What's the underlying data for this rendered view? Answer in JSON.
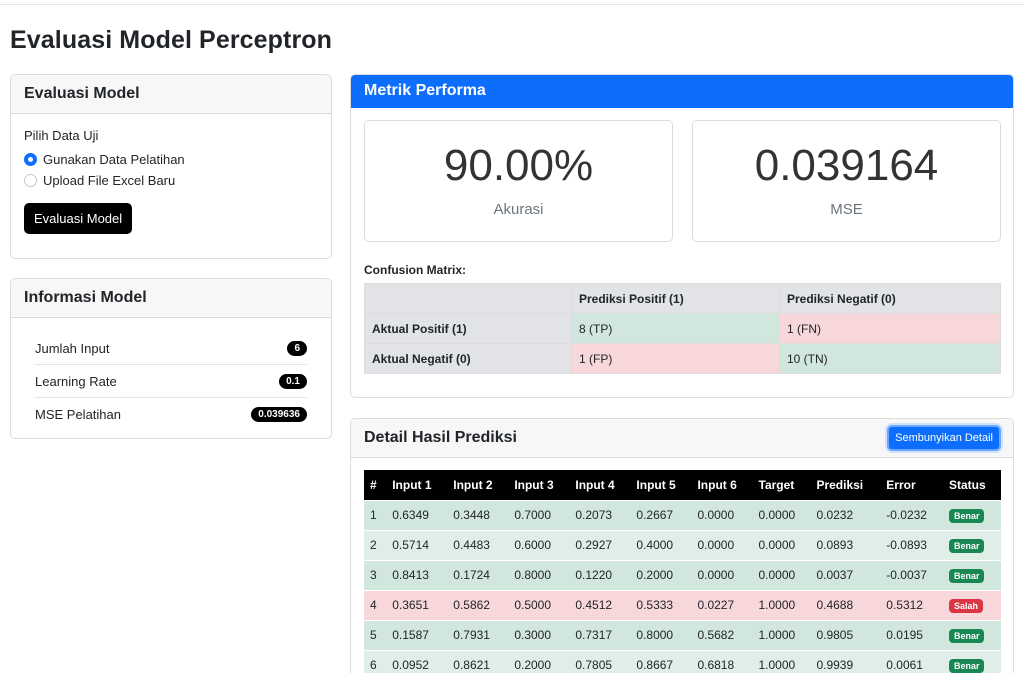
{
  "page": {
    "title": "Evaluasi Model Perceptron"
  },
  "evaluasi": {
    "header": "Evaluasi Model",
    "pilih_label": "Pilih Data Uji",
    "options": [
      {
        "label": "Gunakan Data Pelatihan",
        "checked": true
      },
      {
        "label": "Upload File Excel Baru",
        "checked": false
      }
    ],
    "button": "Evaluasi Model"
  },
  "info": {
    "header": "Informasi Model",
    "rows": [
      {
        "label": "Jumlah Input",
        "value": "6"
      },
      {
        "label": "Learning Rate",
        "value": "0.1"
      },
      {
        "label": "MSE Pelatihan",
        "value": "0.039636"
      }
    ]
  },
  "metrik": {
    "header": "Metrik Performa",
    "accuracy": {
      "value": "90.00%",
      "label": "Akurasi"
    },
    "mse": {
      "value": "0.039164",
      "label": "MSE"
    },
    "confusion": {
      "label": "Confusion Matrix:",
      "col_pos": "Prediksi Positif (1)",
      "col_neg": "Prediksi Negatif (0)",
      "row_pos": "Aktual Positif (1)",
      "row_neg": "Aktual Negatif (0)",
      "tp": "8 (TP)",
      "fn": "1 (FN)",
      "fp": "1 (FP)",
      "tn": "10 (TN)"
    }
  },
  "detail": {
    "header": "Detail Hasil Prediksi",
    "button": "Sembunyikan Detail",
    "columns": [
      "#",
      "Input 1",
      "Input 2",
      "Input 3",
      "Input 4",
      "Input 5",
      "Input 6",
      "Target",
      "Prediksi",
      "Error",
      "Status"
    ],
    "rows": [
      [
        "1",
        "0.6349",
        "0.3448",
        "0.7000",
        "0.2073",
        "0.2667",
        "0.0000",
        "0.0000",
        "0.0232",
        "-0.0232",
        "Benar"
      ],
      [
        "2",
        "0.5714",
        "0.4483",
        "0.6000",
        "0.2927",
        "0.4000",
        "0.0000",
        "0.0000",
        "0.0893",
        "-0.0893",
        "Benar"
      ],
      [
        "3",
        "0.8413",
        "0.1724",
        "0.8000",
        "0.1220",
        "0.2000",
        "0.0000",
        "0.0000",
        "0.0037",
        "-0.0037",
        "Benar"
      ],
      [
        "4",
        "0.3651",
        "0.5862",
        "0.5000",
        "0.4512",
        "0.5333",
        "0.0227",
        "1.0000",
        "0.4688",
        "0.5312",
        "Salah"
      ],
      [
        "5",
        "0.1587",
        "0.7931",
        "0.3000",
        "0.7317",
        "0.8000",
        "0.5682",
        "1.0000",
        "0.9805",
        "0.0195",
        "Benar"
      ],
      [
        "6",
        "0.0952",
        "0.8621",
        "0.2000",
        "0.7805",
        "0.8667",
        "0.6818",
        "1.0000",
        "0.9939",
        "0.0061",
        "Benar"
      ]
    ]
  }
}
